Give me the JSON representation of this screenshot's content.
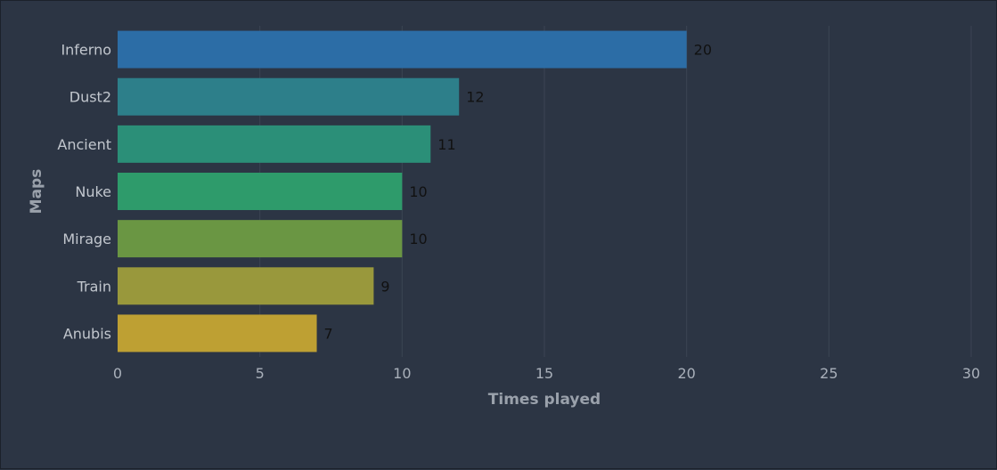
{
  "chart_data": {
    "type": "bar",
    "orientation": "horizontal",
    "categories": [
      "Inferno",
      "Dust2",
      "Ancient",
      "Nuke",
      "Mirage",
      "Train",
      "Anubis"
    ],
    "values": [
      20,
      12,
      11,
      10,
      10,
      9,
      7
    ],
    "colors": [
      "#2c6da6",
      "#2d7f8a",
      "#2b8f78",
      "#2e9b6b",
      "#6a9643",
      "#99983c",
      "#bea033"
    ],
    "xlabel": "Times played",
    "ylabel": "Maps",
    "xlim": [
      0,
      30
    ],
    "xticks": [
      0,
      5,
      10,
      15,
      20,
      25,
      30
    ],
    "grid": "vertical",
    "legend": "none",
    "data_labels": true
  }
}
